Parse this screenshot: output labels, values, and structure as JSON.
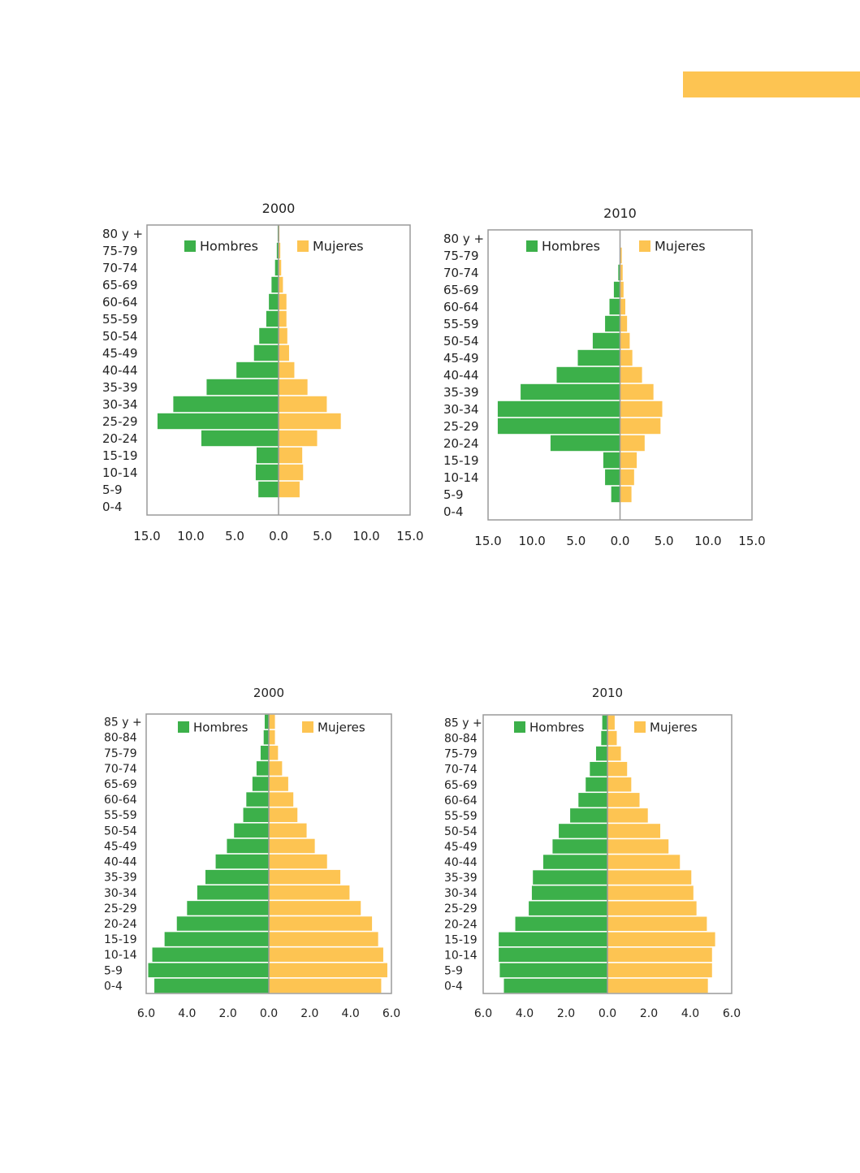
{
  "colors": {
    "hombres": "#3cb04a",
    "mujeres": "#fdc452",
    "accent": "#fdc452",
    "frame": "#9a9a9a"
  },
  "charts": [
    {
      "id": "top-2000",
      "chart_data": {
        "type": "bar",
        "orientation": "horizontal-diverging",
        "title": "2000",
        "categories": [
          "80 y +",
          "75-79",
          "70-74",
          "65-69",
          "60-64",
          "55-59",
          "50-54",
          "45-49",
          "40-44",
          "35-39",
          "30-34",
          "25-29",
          "20-24",
          "15-19",
          "10-14",
          "5-9",
          "0-4"
        ],
        "series": [
          {
            "name": "Hombres",
            "values": [
              0.1,
              0.2,
              0.4,
              0.8,
              1.1,
              1.4,
              2.2,
              2.8,
              4.8,
              8.2,
              12.0,
              13.8,
              8.8,
              2.5,
              2.6,
              2.3,
              0.0
            ]
          },
          {
            "name": "Mujeres",
            "values": [
              0.1,
              0.2,
              0.3,
              0.5,
              0.9,
              0.9,
              1.0,
              1.2,
              1.8,
              3.3,
              5.5,
              7.1,
              4.4,
              2.7,
              2.8,
              2.4,
              0.0
            ]
          }
        ],
        "xlim": [
          -15,
          15
        ],
        "tick_labels": [
          "15.0",
          "10.0",
          "5.0",
          "0.0",
          "5.0",
          "10.0",
          "15.0"
        ],
        "legend": [
          "Hombres",
          "Mujeres"
        ]
      }
    },
    {
      "id": "top-2010",
      "chart_data": {
        "type": "bar",
        "orientation": "horizontal-diverging",
        "title": "2010",
        "categories": [
          "80 y +",
          "75-79",
          "70-74",
          "65-69",
          "60-64",
          "55-59",
          "50-54",
          "45-49",
          "40-44",
          "35-39",
          "30-34",
          "25-29",
          "20-24",
          "15-19",
          "10-14",
          "5-9",
          "0-4"
        ],
        "series": [
          {
            "name": "Hombres",
            "values": [
              0.0,
              0.0,
              0.2,
              0.7,
              1.2,
              1.7,
              3.1,
              4.8,
              7.2,
              11.3,
              13.9,
              13.9,
              7.9,
              1.9,
              1.7,
              1.0,
              0.0
            ]
          },
          {
            "name": "Mujeres",
            "values": [
              0.0,
              0.2,
              0.3,
              0.4,
              0.6,
              0.8,
              1.1,
              1.4,
              2.5,
              3.8,
              4.8,
              4.6,
              2.8,
              1.9,
              1.6,
              1.3,
              0.0
            ]
          }
        ],
        "xlim": [
          -15,
          15
        ],
        "tick_labels": [
          "15.0",
          "10.0",
          "5.0",
          "0.0",
          "5.0",
          "10.0",
          "15.0"
        ],
        "legend": [
          "Hombres",
          "Mujeres"
        ]
      }
    },
    {
      "id": "bottom-2000",
      "chart_data": {
        "type": "bar",
        "orientation": "horizontal-diverging",
        "title": "2000",
        "categories": [
          "85 y +",
          "80-84",
          "75-79",
          "70-74",
          "65-69",
          "60-64",
          "55-59",
          "50-54",
          "45-49",
          "40-44",
          "35-39",
          "30-34",
          "25-29",
          "20-24",
          "15-19",
          "10-14",
          "5-9",
          "0-4"
        ],
        "series": [
          {
            "name": "Hombres",
            "values": [
              0.2,
              0.25,
              0.4,
              0.6,
              0.8,
              1.1,
              1.25,
              1.7,
              2.05,
              2.6,
              3.1,
              3.5,
              4.0,
              4.5,
              5.1,
              5.7,
              5.9,
              5.6
            ]
          },
          {
            "name": "Mujeres",
            "values": [
              0.3,
              0.3,
              0.45,
              0.65,
              0.95,
              1.2,
              1.4,
              1.85,
              2.25,
              2.85,
              3.5,
              3.95,
              4.5,
              5.05,
              5.35,
              5.6,
              5.8,
              5.5
            ]
          }
        ],
        "xlim": [
          -6,
          6
        ],
        "tick_labels": [
          "6.0",
          "4.0",
          "2.0",
          "0.0",
          "2.0",
          "4.0",
          "6.0"
        ],
        "legend": [
          "Hombres",
          "Mujeres"
        ]
      }
    },
    {
      "id": "bottom-2010",
      "chart_data": {
        "type": "bar",
        "orientation": "horizontal-diverging",
        "title": "2010",
        "categories": [
          "85 y +",
          "80-84",
          "75-79",
          "70-74",
          "65-69",
          "60-64",
          "55-59",
          "50-54",
          "45-49",
          "40-44",
          "35-39",
          "30-34",
          "25-29",
          "20-24",
          "15-19",
          "10-14",
          "5-9",
          "0-4"
        ],
        "series": [
          {
            "name": "Hombres",
            "values": [
              0.25,
              0.3,
              0.55,
              0.85,
              1.05,
              1.4,
              1.8,
              2.35,
              2.65,
              3.1,
              3.6,
              3.65,
              3.8,
              4.45,
              5.25,
              5.25,
              5.2,
              5.0
            ]
          },
          {
            "name": "Mujeres",
            "values": [
              0.35,
              0.45,
              0.65,
              0.95,
              1.15,
              1.55,
              1.95,
              2.55,
              2.95,
              3.5,
              4.05,
              4.15,
              4.3,
              4.8,
              5.2,
              5.05,
              5.05,
              4.85
            ]
          }
        ],
        "xlim": [
          -6,
          6
        ],
        "tick_labels": [
          "6.0",
          "4.0",
          "2.0",
          "0.0",
          "2.0",
          "4.0",
          "6.0"
        ],
        "legend": [
          "Hombres",
          "Mujeres"
        ]
      }
    }
  ]
}
